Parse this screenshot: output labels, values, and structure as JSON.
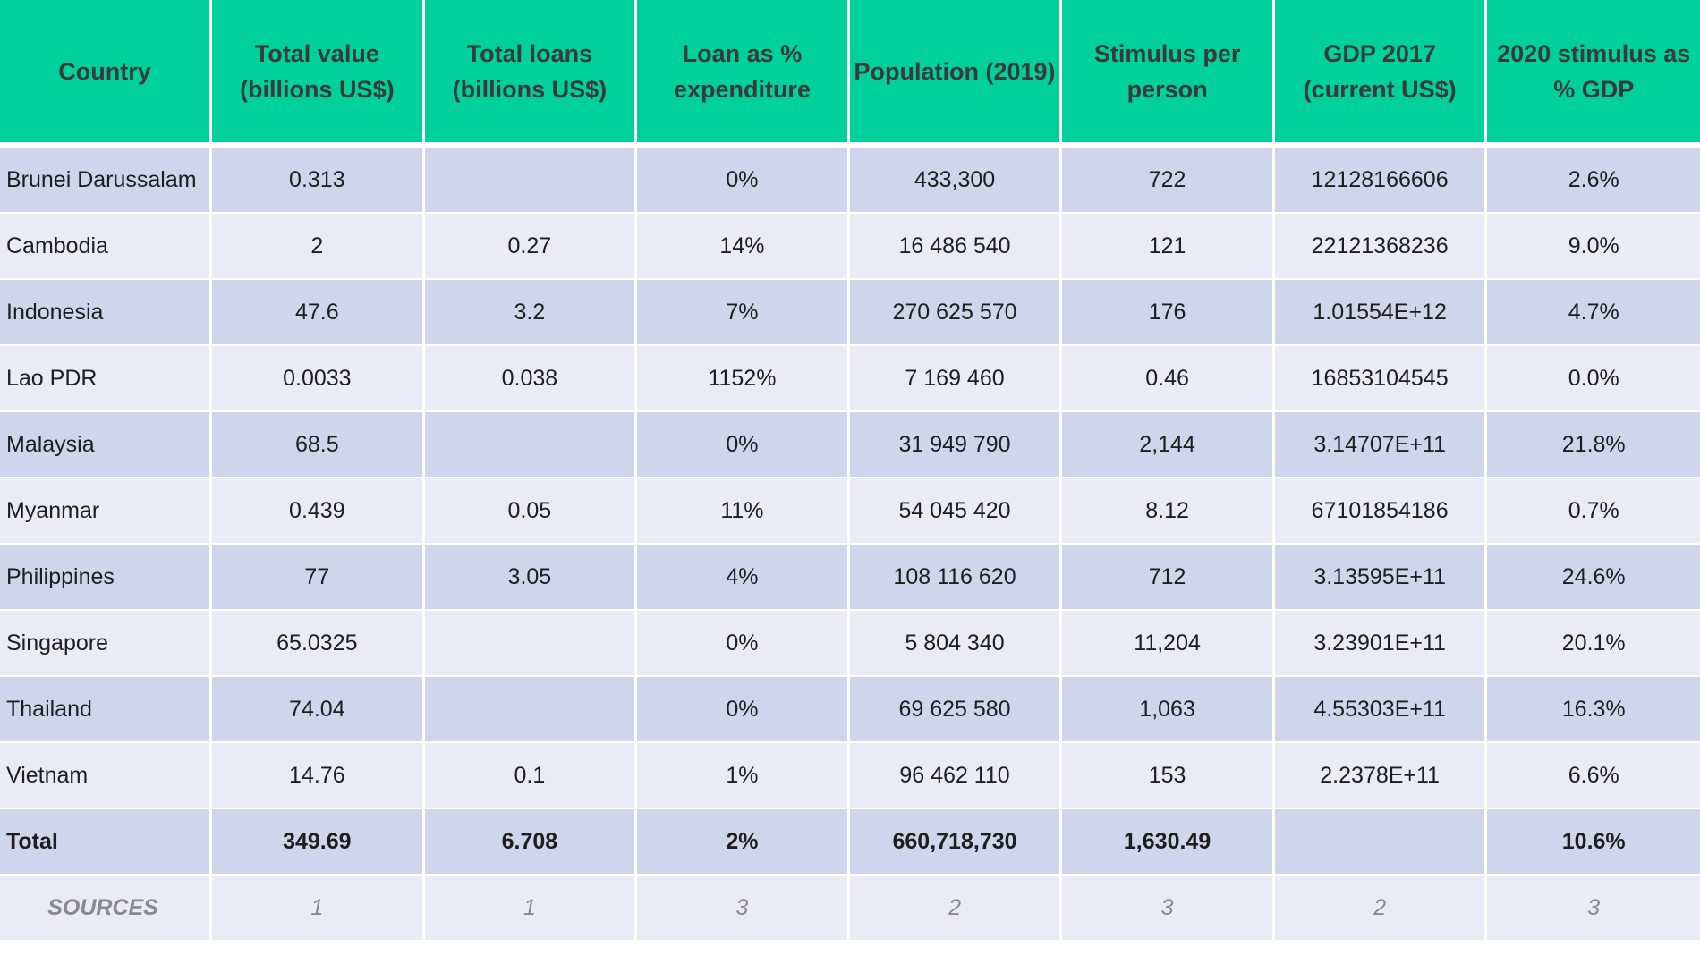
{
  "table": {
    "headers": [
      "Country",
      "Total value (billions US$)",
      "Total loans (billions US$)",
      "Loan as % expenditure",
      "Population (2019)",
      "Stimulus per person",
      "GDP 2017 (current US$)",
      "2020 stimulus as % GDP"
    ],
    "rows": [
      [
        "Brunei Darussalam",
        "0.313",
        "",
        "0%",
        "433,300",
        "722",
        "12128166606",
        "2.6%"
      ],
      [
        "Cambodia",
        "2",
        "0.27",
        "14%",
        "16 486 540",
        "121",
        "22121368236",
        "9.0%"
      ],
      [
        "Indonesia",
        "47.6",
        "3.2",
        "7%",
        "270 625 570",
        "176",
        "1.01554E+12",
        "4.7%"
      ],
      [
        "Lao PDR",
        "0.0033",
        "0.038",
        "1152%",
        "7 169 460",
        "0.46",
        "16853104545",
        "0.0%"
      ],
      [
        "Malaysia",
        "68.5",
        "",
        "0%",
        "31 949 790",
        "2,144",
        "3.14707E+11",
        "21.8%"
      ],
      [
        "Myanmar",
        "0.439",
        "0.05",
        "11%",
        "54 045 420",
        "8.12",
        "67101854186",
        "0.7%"
      ],
      [
        "Philippines",
        "77",
        "3.05",
        "4%",
        "108 116 620",
        "712",
        "3.13595E+11",
        "24.6%"
      ],
      [
        "Singapore",
        "65.0325",
        "",
        "0%",
        "5 804 340",
        "11,204",
        "3.23901E+11",
        "20.1%"
      ],
      [
        "Thailand",
        "74.04",
        "",
        "0%",
        "69 625 580",
        "1,063",
        "4.55303E+11",
        "16.3%"
      ],
      [
        "Vietnam",
        "14.76",
        "0.1",
        "1%",
        "96 462 110",
        "153",
        "2.2378E+11",
        "6.6%"
      ]
    ],
    "total": [
      "Total",
      "349.69",
      "6.708",
      "2%",
      "660,718,730",
      "1,630.49",
      "",
      "10.6%"
    ],
    "sources": [
      "SOURCES",
      "1",
      "1",
      "3",
      "2",
      "3",
      "2",
      "3"
    ]
  },
  "colors": {
    "header_bg": "#00d09c",
    "row_dark": "#cfd5ea",
    "row_light": "#e9ebf5",
    "header_text": "#3a3a3a",
    "sources_text": "#8a8a8a"
  }
}
